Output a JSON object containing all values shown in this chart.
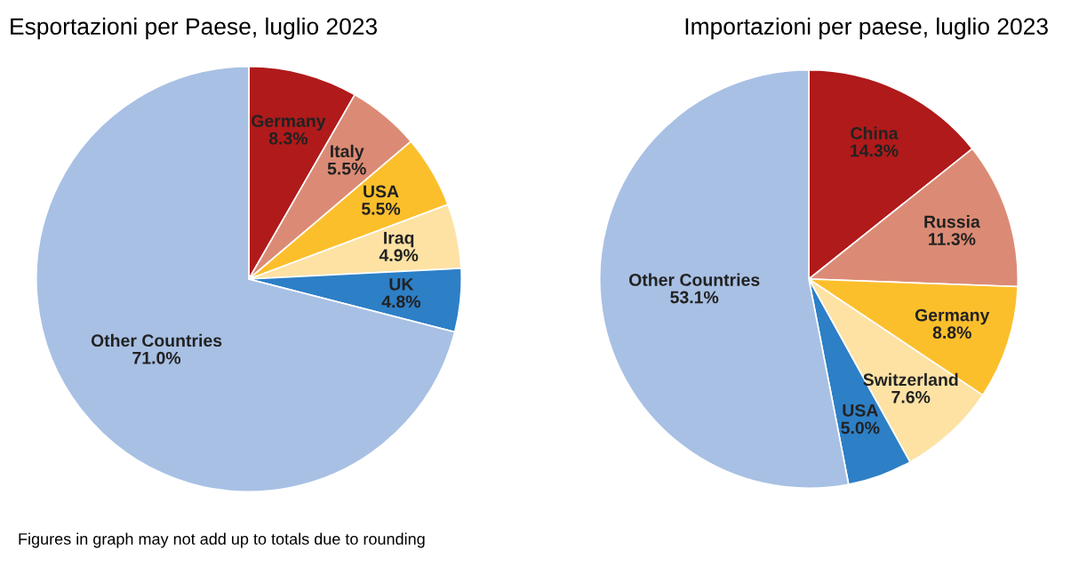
{
  "chart_data": [
    {
      "type": "pie",
      "title": "Esportazioni per Paese, luglio 2023",
      "categories": [
        "Germany",
        "Italy",
        "USA",
        "Iraq",
        "UK",
        "Other Countries"
      ],
      "values": [
        8.3,
        5.5,
        5.5,
        4.9,
        4.8,
        71.0
      ],
      "value_labels": [
        "8.3%",
        "5.5%",
        "5.5%",
        "4.9%",
        "4.8%",
        "71.0%"
      ],
      "colors": [
        "#b01a1a",
        "#db8b75",
        "#fcbf2c",
        "#fde2a4",
        "#2d7fc6",
        "#a8c0e4"
      ],
      "annotations": [
        "Figures in graph may not add up to totals due to rounding"
      ]
    },
    {
      "type": "pie",
      "title": "Importazioni per paese, luglio 2023",
      "categories": [
        "China",
        "Russia",
        "Germany",
        "Switzerland",
        "USA",
        "Other Countries"
      ],
      "values": [
        14.3,
        11.3,
        8.8,
        7.6,
        5.0,
        53.1
      ],
      "value_labels": [
        "14.3%",
        "11.3%",
        "8.8%",
        "7.6%",
        "5.0%",
        "53.1%"
      ],
      "colors": [
        "#b01a1a",
        "#db8b75",
        "#fcbf2c",
        "#fde2a4",
        "#2d7fc6",
        "#a8c0e4"
      ]
    }
  ]
}
